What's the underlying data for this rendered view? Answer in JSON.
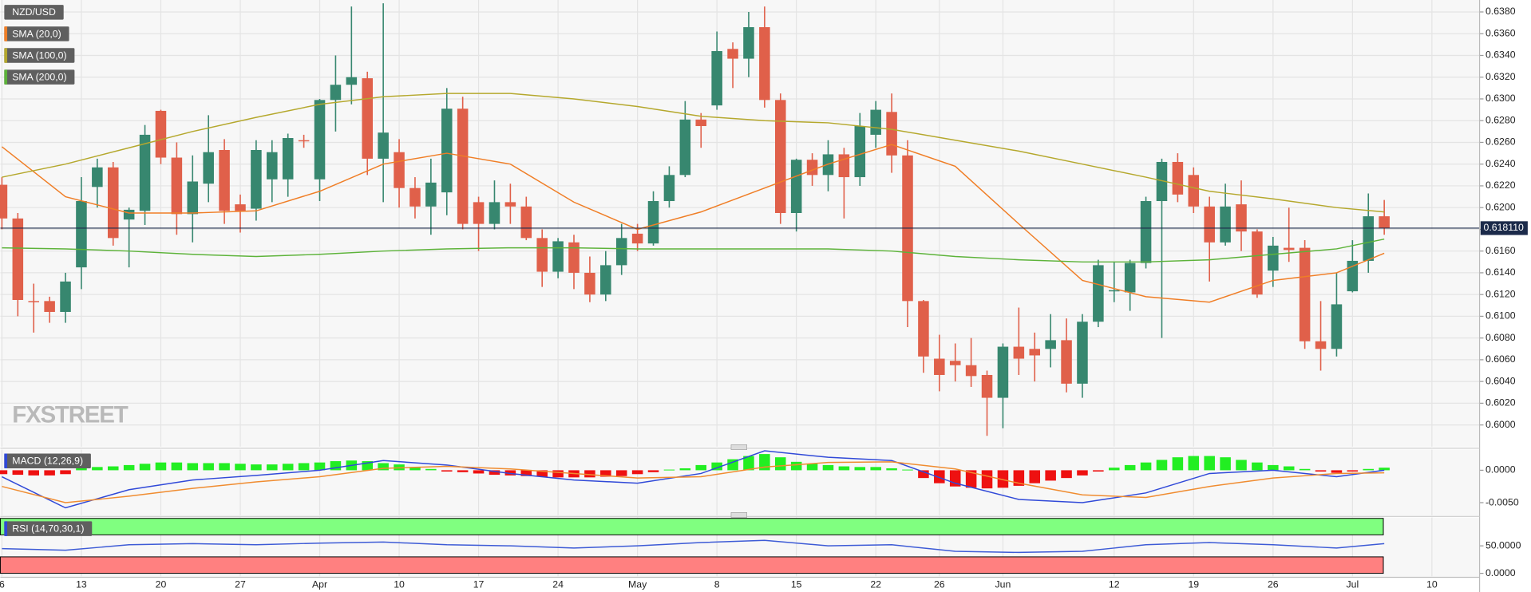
{
  "chart_data": [
    {
      "type": "candlestick",
      "title": "NZD/USD",
      "watermark": "FXSTREET",
      "color_up": "#37876f",
      "color_down": "#e0604a",
      "open": [
        0.6221,
        0.619,
        0.6114,
        0.6114,
        0.6104,
        0.6145,
        0.6219,
        0.6237,
        0.6189,
        0.6197,
        0.6289,
        0.6246,
        0.6194,
        0.6222,
        0.6253,
        0.6203,
        0.6199,
        0.6226,
        0.6226,
        0.6262,
        0.6226,
        0.6299,
        0.6313,
        0.6319,
        0.6245,
        0.6251,
        0.6218,
        0.6201,
        0.6214,
        0.6291,
        0.6205,
        0.6185,
        0.6205,
        0.6201,
        0.6172,
        0.6141,
        0.6168,
        0.614,
        0.612,
        0.6147,
        0.6176,
        0.6167,
        0.6206,
        0.623,
        0.6281,
        0.6294,
        0.6346,
        0.6337,
        0.6366,
        0.6299,
        0.6195,
        0.6244,
        0.623,
        0.6249,
        0.6228,
        0.6267,
        0.6288,
        0.6248,
        0.6114,
        0.6061,
        0.6059,
        0.6055,
        0.6046,
        0.6025,
        0.6072,
        0.607,
        0.607,
        0.6078,
        0.6038,
        0.6095,
        0.6123,
        0.6122,
        0.6149,
        0.6206,
        0.6242,
        0.623,
        0.6201,
        0.6168,
        0.6203,
        0.6178,
        0.6142,
        0.6163,
        0.6163,
        0.6077,
        0.607,
        0.6123,
        0.6151,
        0.6192
      ],
      "high": [
        0.6228,
        0.6195,
        0.613,
        0.6118,
        0.614,
        0.6228,
        0.6245,
        0.6242,
        0.62,
        0.6276,
        0.629,
        0.626,
        0.6248,
        0.6285,
        0.6263,
        0.6212,
        0.6262,
        0.6262,
        0.6268,
        0.6267,
        0.63,
        0.634,
        0.6385,
        0.6325,
        0.6388,
        0.6263,
        0.6228,
        0.6245,
        0.631,
        0.6302,
        0.621,
        0.6225,
        0.6222,
        0.621,
        0.618,
        0.6172,
        0.6175,
        0.6155,
        0.616,
        0.6185,
        0.6185,
        0.6215,
        0.6238,
        0.6298,
        0.6287,
        0.6362,
        0.6352,
        0.638,
        0.6385,
        0.6305,
        0.6245,
        0.625,
        0.6262,
        0.6255,
        0.6287,
        0.6298,
        0.6305,
        0.6262,
        0.6115,
        0.6083,
        0.6075,
        0.608,
        0.605,
        0.6075,
        0.6108,
        0.6085,
        0.6102,
        0.6098,
        0.6102,
        0.6152,
        0.615,
        0.6152,
        0.621,
        0.6245,
        0.625,
        0.6237,
        0.621,
        0.6222,
        0.6225,
        0.618,
        0.6173,
        0.62,
        0.617,
        0.6114,
        0.614,
        0.617,
        0.6213,
        0.6207
      ],
      "low": [
        0.618,
        0.61,
        0.6085,
        0.6094,
        0.6094,
        0.6125,
        0.62,
        0.6165,
        0.6145,
        0.6184,
        0.624,
        0.6175,
        0.6168,
        0.6205,
        0.6185,
        0.6177,
        0.6188,
        0.6205,
        0.621,
        0.6255,
        0.6206,
        0.627,
        0.6295,
        0.623,
        0.6205,
        0.62,
        0.619,
        0.6175,
        0.6193,
        0.618,
        0.616,
        0.618,
        0.6185,
        0.617,
        0.6127,
        0.6135,
        0.6125,
        0.6113,
        0.6114,
        0.6138,
        0.616,
        0.6165,
        0.62,
        0.6228,
        0.6255,
        0.629,
        0.631,
        0.632,
        0.6292,
        0.6185,
        0.6178,
        0.622,
        0.6215,
        0.619,
        0.622,
        0.6255,
        0.6232,
        0.609,
        0.6048,
        0.6031,
        0.604,
        0.6035,
        0.599,
        0.5997,
        0.6046,
        0.604,
        0.6053,
        0.603,
        0.6025,
        0.609,
        0.6113,
        0.6105,
        0.6144,
        0.608,
        0.6205,
        0.6195,
        0.6132,
        0.6165,
        0.616,
        0.6117,
        0.6127,
        0.615,
        0.607,
        0.605,
        0.6063,
        0.6122,
        0.614,
        0.6175
      ],
      "close": [
        0.619,
        0.6115,
        0.6113,
        0.6104,
        0.6132,
        0.6206,
        0.6237,
        0.6172,
        0.6198,
        0.6267,
        0.6246,
        0.6194,
        0.6224,
        0.6251,
        0.6197,
        0.6197,
        0.6253,
        0.6251,
        0.6264,
        0.6261,
        0.6299,
        0.6313,
        0.632,
        0.6245,
        0.6269,
        0.6218,
        0.6201,
        0.6223,
        0.6291,
        0.6185,
        0.6185,
        0.6205,
        0.6201,
        0.6172,
        0.6141,
        0.6169,
        0.614,
        0.612,
        0.6147,
        0.6172,
        0.6167,
        0.6206,
        0.623,
        0.6281,
        0.6275,
        0.6344,
        0.6337,
        0.6366,
        0.6299,
        0.6195,
        0.6244,
        0.623,
        0.6249,
        0.6228,
        0.6275,
        0.629,
        0.6248,
        0.6114,
        0.6063,
        0.6046,
        0.6055,
        0.6045,
        0.6025,
        0.6072,
        0.6061,
        0.6064,
        0.6078,
        0.6038,
        0.6095,
        0.6147,
        0.6124,
        0.6149,
        0.6206,
        0.6242,
        0.6212,
        0.6201,
        0.6168,
        0.6201,
        0.6178,
        0.612,
        0.6165,
        0.6161,
        0.6077,
        0.607,
        0.6111,
        0.6151,
        0.6192,
        0.6181
      ],
      "series": [
        {
          "name": "SMA (20,0)",
          "color": "#f07e26",
          "x": [
            0,
            4,
            8,
            12,
            16,
            20,
            24,
            28,
            32,
            36,
            40,
            44,
            48,
            52,
            56,
            60,
            64,
            68,
            72,
            76,
            80,
            84,
            87
          ],
          "values": [
            0.6256,
            0.621,
            0.6195,
            0.6195,
            0.6197,
            0.6215,
            0.624,
            0.625,
            0.624,
            0.6205,
            0.618,
            0.6196,
            0.6218,
            0.624,
            0.6258,
            0.6238,
            0.6185,
            0.6133,
            0.6118,
            0.6113,
            0.6133,
            0.614,
            0.6158
          ]
        },
        {
          "name": "SMA (100,0)",
          "color": "#b5a82d",
          "x": [
            0,
            4,
            8,
            12,
            16,
            20,
            24,
            28,
            32,
            36,
            40,
            44,
            48,
            52,
            56,
            60,
            64,
            68,
            72,
            76,
            80,
            84,
            87
          ],
          "values": [
            0.6228,
            0.624,
            0.6255,
            0.627,
            0.6283,
            0.6295,
            0.6302,
            0.6305,
            0.6305,
            0.63,
            0.6293,
            0.6284,
            0.628,
            0.6278,
            0.6272,
            0.6262,
            0.6252,
            0.624,
            0.6228,
            0.6215,
            0.6208,
            0.62,
            0.6196
          ]
        },
        {
          "name": "SMA (200,0)",
          "color": "#5db33a",
          "x": [
            0,
            4,
            8,
            12,
            16,
            20,
            24,
            28,
            32,
            36,
            40,
            44,
            48,
            52,
            56,
            60,
            64,
            68,
            72,
            76,
            80,
            84,
            87
          ],
          "values": [
            0.6163,
            0.6162,
            0.616,
            0.6157,
            0.6155,
            0.6157,
            0.616,
            0.6162,
            0.6163,
            0.6163,
            0.6162,
            0.6162,
            0.6162,
            0.6162,
            0.616,
            0.6155,
            0.6152,
            0.615,
            0.615,
            0.6152,
            0.6157,
            0.6162,
            0.6171
          ]
        }
      ],
      "price_line": {
        "value": 0.61811,
        "label": "0.618110"
      },
      "xlim": [
        -0.1,
        93
      ],
      "xticks": [
        {
          "value": 0,
          "label": "6"
        },
        {
          "value": 5,
          "label": "13"
        },
        {
          "value": 10,
          "label": "20"
        },
        {
          "value": 15,
          "label": "27"
        },
        {
          "value": 20,
          "label": "Apr"
        },
        {
          "value": 25,
          "label": "10"
        },
        {
          "value": 30,
          "label": "17"
        },
        {
          "value": 35,
          "label": "24"
        },
        {
          "value": 40,
          "label": "May"
        },
        {
          "value": 45,
          "label": "8"
        },
        {
          "value": 50,
          "label": "15"
        },
        {
          "value": 55,
          "label": "22"
        },
        {
          "value": 59,
          "label": "26"
        },
        {
          "value": 63,
          "label": "Jun"
        },
        {
          "value": 70,
          "label": "12"
        },
        {
          "value": 75,
          "label": "19"
        },
        {
          "value": 80,
          "label": "26"
        },
        {
          "value": 85,
          "label": "Jul"
        },
        {
          "value": 90,
          "label": "10"
        }
      ],
      "ylim": [
        0.598,
        0.6391
      ],
      "yticks": [
        {
          "value": 0.6,
          "label": "0.6000"
        },
        {
          "value": 0.602,
          "label": "0.6020"
        },
        {
          "value": 0.604,
          "label": "0.6040"
        },
        {
          "value": 0.606,
          "label": "0.6060"
        },
        {
          "value": 0.608,
          "label": "0.6080"
        },
        {
          "value": 0.61,
          "label": "0.6100"
        },
        {
          "value": 0.612,
          "label": "0.6120"
        },
        {
          "value": 0.614,
          "label": "0.6140"
        },
        {
          "value": 0.616,
          "label": "0.6160"
        },
        {
          "value": 0.618,
          "label": "0.6180"
        },
        {
          "value": 0.62,
          "label": "0.6200"
        },
        {
          "value": 0.622,
          "label": "0.6220"
        },
        {
          "value": 0.624,
          "label": "0.6240"
        },
        {
          "value": 0.626,
          "label": "0.6260"
        },
        {
          "value": 0.628,
          "label": "0.6280"
        },
        {
          "value": 0.63,
          "label": "0.6300"
        },
        {
          "value": 0.632,
          "label": "0.6320"
        },
        {
          "value": 0.634,
          "label": "0.6340"
        },
        {
          "value": 0.636,
          "label": "0.6360"
        },
        {
          "value": 0.638,
          "label": "0.6380"
        }
      ],
      "grid": true
    },
    {
      "type": "macd",
      "title": "MACD (12,26,9)",
      "color_up": "#22ee22",
      "color_down": "#ee1111",
      "histogram": [
        -0.0006,
        -0.0007,
        -0.0008,
        -0.0008,
        -0.0006,
        0.0003,
        0.0005,
        0.0006,
        0.0008,
        0.001,
        0.0012,
        0.0012,
        0.0011,
        0.0011,
        0.0011,
        0.001,
        0.0009,
        0.0009,
        0.001,
        0.0011,
        0.0012,
        0.0014,
        0.0015,
        0.0014,
        0.0011,
        0.0009,
        0.0005,
        0.0002,
        -0.0002,
        -0.0003,
        -0.0005,
        -0.0007,
        -0.0008,
        -0.0009,
        -0.001,
        -0.0011,
        -0.0011,
        -0.0011,
        -0.001,
        -0.0009,
        -0.0006,
        -0.0003,
        0.0001,
        0.0003,
        0.0008,
        0.0012,
        0.0017,
        0.0022,
        0.0025,
        0.002,
        0.0013,
        0.001,
        0.0008,
        0.0006,
        0.0005,
        0.0005,
        0.0003,
        0.0001,
        -0.0012,
        -0.002,
        -0.0025,
        -0.0027,
        -0.0028,
        -0.0027,
        -0.0024,
        -0.002,
        -0.0016,
        -0.0012,
        -0.0008,
        -0.0002,
        0.0004,
        0.0008,
        0.0012,
        0.0016,
        0.002,
        0.0022,
        0.0022,
        0.002,
        0.0016,
        0.0012,
        0.0008,
        0.0006,
        0.0002,
        -0.0002,
        -0.0004,
        -0.0002,
        0.0002,
        0.0004
      ],
      "series": [
        {
          "color": "#3049d8",
          "x": [
            0,
            4,
            8,
            12,
            16,
            20,
            24,
            28,
            32,
            36,
            40,
            44,
            48,
            52,
            56,
            60,
            64,
            68,
            72,
            76,
            80,
            84,
            87
          ],
          "values": [
            -0.001,
            -0.0058,
            -0.003,
            -0.0015,
            -0.0008,
            0.0,
            0.0015,
            0.0008,
            -0.0005,
            -0.0015,
            -0.002,
            -0.0005,
            0.003,
            0.002,
            0.0015,
            -0.002,
            -0.0045,
            -0.005,
            -0.0035,
            -0.0005,
            0.0,
            -0.001,
            0.0
          ]
        },
        {
          "color": "#f08c30",
          "x": [
            0,
            4,
            8,
            12,
            16,
            20,
            24,
            28,
            32,
            36,
            40,
            44,
            48,
            52,
            56,
            60,
            64,
            68,
            72,
            76,
            80,
            84,
            87
          ],
          "values": [
            -0.0025,
            -0.005,
            -0.004,
            -0.0028,
            -0.0018,
            -0.001,
            0.0003,
            0.0006,
            0.0002,
            -0.0005,
            -0.0012,
            -0.001,
            0.0005,
            0.0012,
            0.0013,
            0.0002,
            -0.002,
            -0.0038,
            -0.0042,
            -0.0025,
            -0.0012,
            -0.0005,
            -0.0004
          ]
        }
      ],
      "ylim": [
        -0.00697,
        0.00318
      ],
      "yticks": [
        {
          "value": 0,
          "label": "0.0000"
        },
        {
          "value": -0.005,
          "label": "-0.0050"
        }
      ]
    },
    {
      "type": "rsi",
      "title": "RSI (14,70,30,1)",
      "bands": [
        {
          "from": 70,
          "to": 100,
          "color": "#80ff80"
        },
        {
          "from": 0,
          "to": 30,
          "color": "#ff8080"
        }
      ],
      "series": [
        {
          "color": "#3d5bd6",
          "x": [
            0,
            4,
            8,
            12,
            16,
            20,
            24,
            28,
            32,
            36,
            40,
            44,
            48,
            52,
            56,
            60,
            64,
            68,
            72,
            76,
            80,
            84,
            87
          ],
          "values": [
            45,
            42,
            52,
            54,
            52,
            55,
            57,
            52,
            50,
            46,
            50,
            56,
            60,
            50,
            52,
            40,
            38,
            40,
            52,
            56,
            52,
            46,
            54
          ]
        }
      ],
      "ylim": [
        -5.4,
        101.8
      ],
      "yticks": [
        {
          "value": 50,
          "label": "50.0000"
        },
        {
          "value": 0,
          "label": "0.0000"
        }
      ]
    }
  ]
}
